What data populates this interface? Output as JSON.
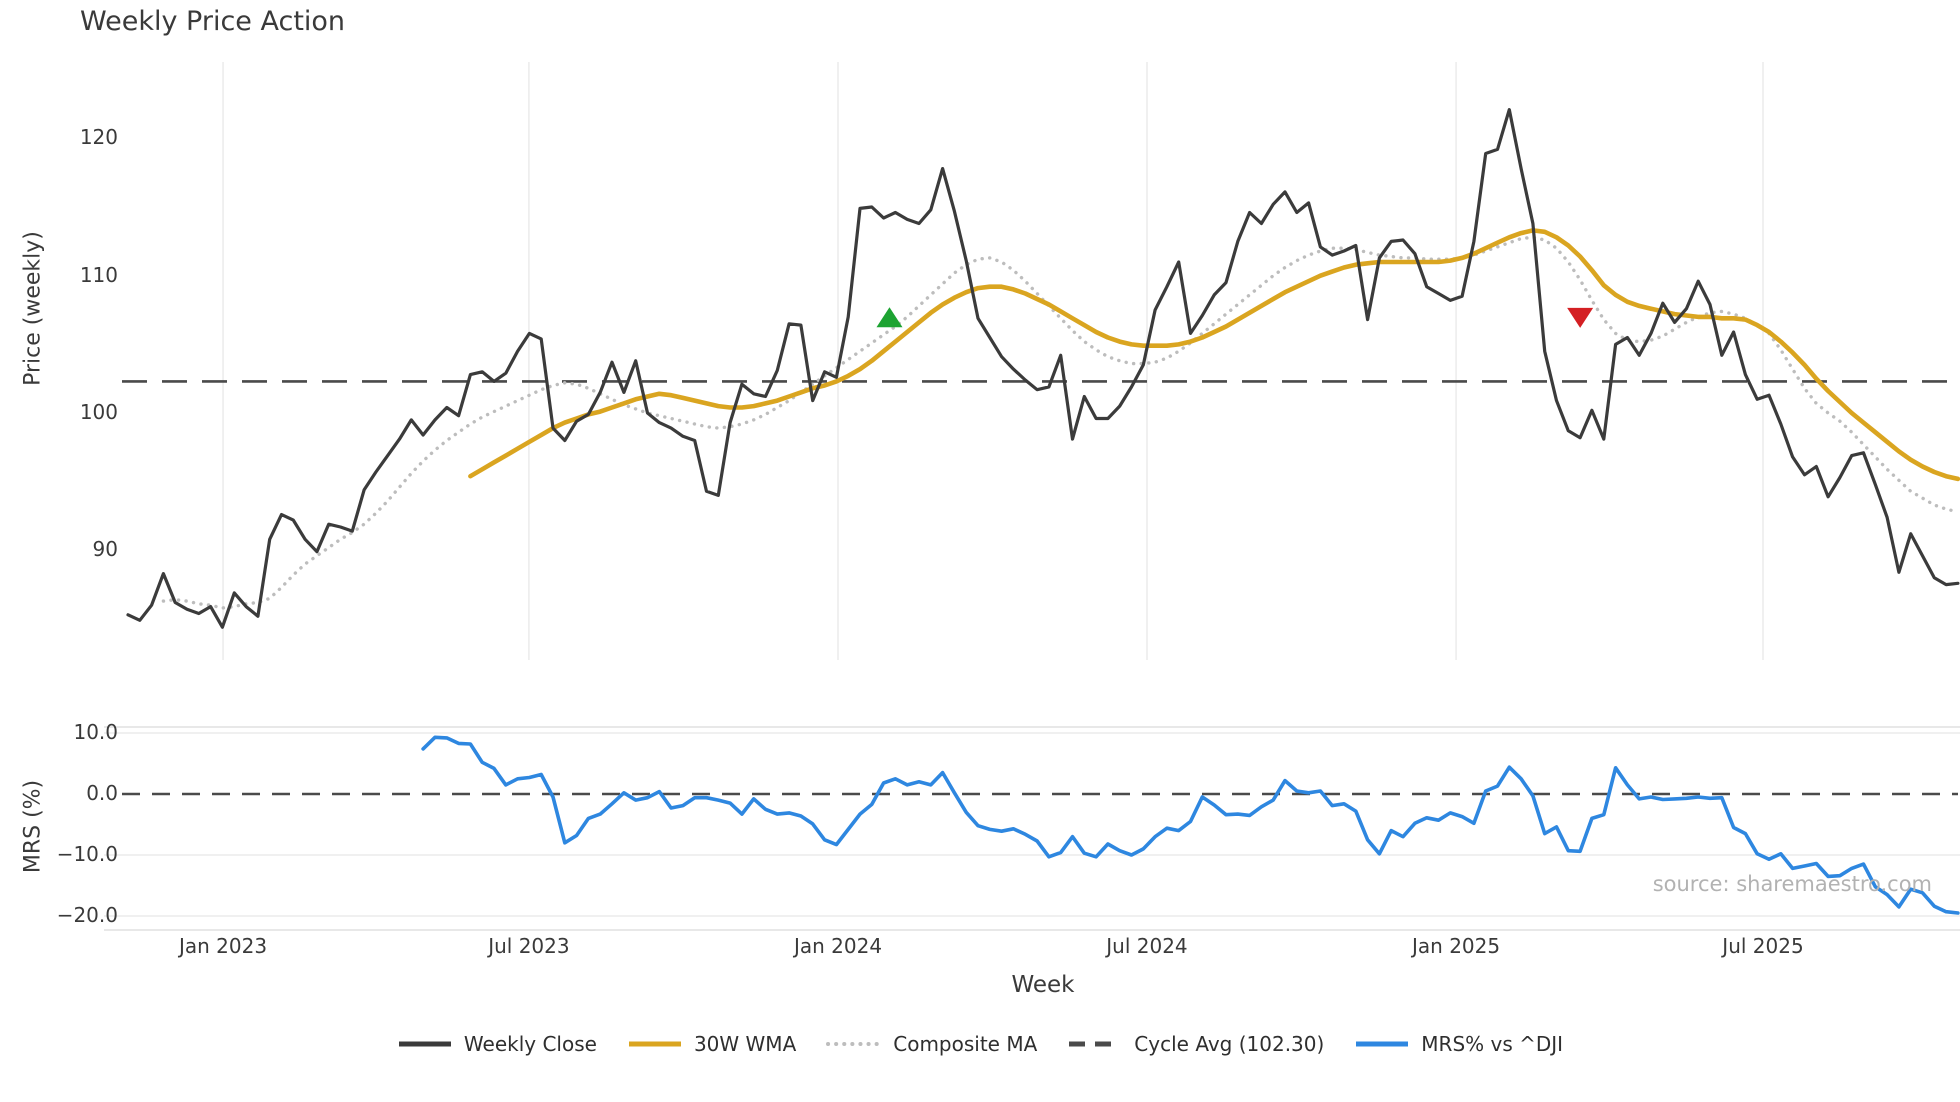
{
  "title": "Weekly Price Action",
  "source_note": "source: sharemaestro.com",
  "colors": {
    "weekly_close": "#3b3b3b",
    "wma_30w": "#daa520",
    "composite_ma": "#bdbdbd",
    "cycle_avg": "#4a4a4a",
    "mrs_line": "#2e87e0",
    "buy_marker": "#1da332",
    "sell_marker": "#d41f23",
    "grid": "#e8e8e8",
    "spine": "#d9d9d9",
    "tick_text": "#3a3a3a"
  },
  "legend": [
    {
      "label": "Weekly Close",
      "style": "solid",
      "color": "#3b3b3b"
    },
    {
      "label": "30W WMA",
      "style": "solid",
      "color": "#daa520"
    },
    {
      "label": "Composite MA",
      "style": "dotted",
      "color": "#bdbdbd"
    },
    {
      "label": "Cycle Avg (102.30)",
      "style": "dashed",
      "color": "#4a4a4a"
    },
    {
      "label": "MRS% vs ^DJI",
      "style": "solid",
      "color": "#2e87e0"
    }
  ],
  "chart_data": {
    "type": "line",
    "title": "Weekly Price Action",
    "xlabel": "Week",
    "x_tick_labels": [
      "Jan 2023",
      "Jul 2023",
      "Jan 2024",
      "Jul 2024",
      "Jan 2025",
      "Jul 2025"
    ],
    "x_tick_weeks": [
      8.05,
      33.96,
      60.14,
      86.31,
      112.49,
      138.49
    ],
    "total_weeks": 156,
    "panels": [
      {
        "name": "price",
        "ylabel": "Price (weekly)",
        "yticks": [
          120,
          110,
          100,
          90
        ],
        "ylim": [
          82.0,
          125.6
        ],
        "grid": "vertical",
        "cycle_avg": 102.3,
        "markers": [
          {
            "shape": "triangle-up",
            "week": 64.5,
            "value": 106.9,
            "color": "#1da332"
          },
          {
            "shape": "triangle-down",
            "week": 123.0,
            "value": 107.0,
            "color": "#d41f23"
          }
        ],
        "series": [
          {
            "name": "Weekly Close",
            "values": [
              85.3,
              84.9,
              86.0,
              88.3,
              86.2,
              85.7,
              85.4,
              85.9,
              84.4,
              86.9,
              85.9,
              85.2,
              90.8,
              92.6,
              92.2,
              90.8,
              89.9,
              91.9,
              91.7,
              91.4,
              94.4,
              95.7,
              96.9,
              98.1,
              99.5,
              98.4,
              99.5,
              100.4,
              99.8,
              102.8,
              103.0,
              102.3,
              102.9,
              104.5,
              105.8,
              105.4,
              98.9,
              98.0,
              99.4,
              99.9,
              101.5,
              103.7,
              101.5,
              103.8,
              100.0,
              99.3,
              98.9,
              98.3,
              98.0,
              94.3,
              94.0,
              99.3,
              102.1,
              101.4,
              101.2,
              103.1,
              106.5,
              106.4,
              100.9,
              103.0,
              102.6,
              107.0,
              114.9,
              115.0,
              114.2,
              114.6,
              114.1,
              113.8,
              114.8,
              117.8,
              114.7,
              111.1,
              106.9,
              105.5,
              104.1,
              103.2,
              102.4,
              101.7,
              101.9,
              104.2,
              98.1,
              101.2,
              99.6,
              99.6,
              100.5,
              101.9,
              103.5,
              107.5,
              109.2,
              111.0,
              105.8,
              107.1,
              108.6,
              109.5,
              112.5,
              114.6,
              113.8,
              115.2,
              116.1,
              114.6,
              115.3,
              112.1,
              111.5,
              111.8,
              112.2,
              106.8,
              111.3,
              112.5,
              112.6,
              111.6,
              109.2,
              108.7,
              108.2,
              108.5,
              112.5,
              118.9,
              119.2,
              122.1,
              117.8,
              113.8,
              104.5,
              100.9,
              98.7,
              98.2,
              100.2,
              98.1,
              105.0,
              105.5,
              104.2,
              105.8,
              108.0,
              106.6,
              107.6,
              109.6,
              107.9,
              104.2,
              105.9,
              102.8,
              101.0,
              101.3,
              99.2,
              96.8,
              95.5,
              96.1,
              93.9,
              95.3,
              96.9,
              97.1,
              94.8,
              92.4,
              88.4,
              91.2,
              89.6,
              88.0,
              87.5,
              87.6
            ]
          },
          {
            "name": "30W WMA",
            "values": [
              null,
              null,
              null,
              null,
              null,
              null,
              null,
              null,
              null,
              null,
              null,
              null,
              null,
              null,
              null,
              null,
              null,
              null,
              null,
              null,
              null,
              null,
              null,
              null,
              null,
              null,
              null,
              null,
              null,
              95.4,
              95.9,
              96.4,
              96.9,
              97.4,
              97.9,
              98.4,
              98.9,
              99.3,
              99.6,
              99.9,
              100.1,
              100.4,
              100.7,
              101.0,
              101.2,
              101.4,
              101.3,
              101.1,
              100.9,
              100.7,
              100.5,
              100.4,
              100.4,
              100.5,
              100.7,
              100.9,
              101.2,
              101.5,
              101.8,
              102.0,
              102.3,
              102.7,
              103.2,
              103.8,
              104.5,
              105.2,
              105.9,
              106.6,
              107.3,
              107.9,
              108.4,
              108.8,
              109.1,
              109.2,
              109.2,
              109.0,
              108.7,
              108.3,
              107.9,
              107.4,
              106.9,
              106.4,
              105.9,
              105.5,
              105.2,
              105.0,
              104.9,
              104.9,
              104.9,
              105.0,
              105.2,
              105.5,
              105.9,
              106.3,
              106.8,
              107.3,
              107.8,
              108.3,
              108.8,
              109.2,
              109.6,
              110.0,
              110.3,
              110.6,
              110.8,
              110.9,
              111.0,
              111.0,
              111.0,
              111.0,
              111.0,
              111.0,
              111.1,
              111.3,
              111.6,
              112.0,
              112.4,
              112.8,
              113.1,
              113.3,
              113.2,
              112.8,
              112.2,
              111.4,
              110.4,
              109.3,
              108.6,
              108.1,
              107.8,
              107.6,
              107.4,
              107.2,
              107.1,
              107.0,
              107.0,
              106.9,
              106.9,
              106.8,
              106.4,
              105.9,
              105.2,
              104.4,
              103.5,
              102.5,
              101.6,
              100.8,
              100.0,
              99.3,
              98.6,
              97.9,
              97.2,
              96.6,
              96.1,
              95.7,
              95.4,
              95.2
            ]
          },
          {
            "name": "Composite MA",
            "values": [
              null,
              null,
              null,
              86.3,
              86.4,
              86.3,
              86.1,
              86.0,
              85.8,
              85.9,
              86.1,
              86.2,
              86.5,
              87.3,
              88.2,
              89.0,
              89.6,
              90.2,
              90.8,
              91.3,
              91.9,
              92.7,
              93.6,
              94.6,
              95.6,
              96.5,
              97.3,
              98.0,
              98.6,
              99.2,
              99.7,
              100.1,
              100.5,
              100.9,
              101.3,
              101.7,
              102.0,
              102.2,
              102.1,
              101.8,
              101.4,
              101.0,
              100.6,
              100.3,
              100.0,
              99.8,
              99.6,
              99.4,
              99.2,
              99.0,
              98.9,
              99.0,
              99.2,
              99.5,
              99.9,
              100.4,
              100.9,
              101.5,
              102.1,
              102.7,
              103.3,
              103.9,
              104.5,
              105.1,
              105.7,
              106.3,
              107.0,
              107.8,
              108.6,
              109.4,
              110.2,
              110.8,
              111.2,
              111.3,
              111.0,
              110.4,
              109.6,
              108.7,
              107.8,
              106.9,
              106.0,
              105.2,
              104.6,
              104.1,
              103.8,
              103.6,
              103.6,
              103.7,
              104.0,
              104.5,
              105.1,
              105.8,
              106.5,
              107.2,
              107.9,
              108.6,
              109.3,
              110.0,
              110.6,
              111.1,
              111.5,
              111.8,
              112.0,
              112.0,
              111.9,
              111.7,
              111.5,
              111.4,
              111.3,
              111.3,
              111.2,
              111.2,
              111.2,
              111.3,
              111.5,
              111.8,
              112.1,
              112.4,
              112.7,
              112.8,
              112.6,
              112.0,
              111.0,
              109.7,
              108.2,
              106.8,
              105.8,
              105.3,
              105.2,
              105.3,
              105.6,
              106.1,
              106.6,
              107.0,
              107.3,
              107.4,
              107.2,
              106.9,
              106.4,
              105.8,
              104.6,
              103.2,
              101.8,
              100.7,
              100.0,
              99.4,
              98.6,
              97.7,
              96.8,
              95.9,
              95.1,
              94.3,
              93.8,
              93.3,
              93.0,
              92.8
            ]
          }
        ]
      },
      {
        "name": "mrs",
        "ylabel": "MRS (%)",
        "yticks": [
          10.0,
          0.0,
          -10.0,
          -20.0
        ],
        "ylim": [
          -22.0,
          11.0
        ],
        "zero_line": 0.0,
        "series": [
          {
            "name": "MRS% vs ^DJI",
            "values": [
              null,
              null,
              null,
              null,
              null,
              null,
              null,
              null,
              null,
              null,
              null,
              null,
              null,
              null,
              null,
              null,
              null,
              null,
              null,
              null,
              null,
              null,
              null,
              null,
              null,
              7.4,
              9.3,
              9.2,
              8.3,
              8.2,
              5.2,
              4.2,
              1.5,
              2.5,
              2.7,
              3.2,
              -0.5,
              -8.0,
              -6.8,
              -4.0,
              -3.3,
              -1.6,
              0.2,
              -1.0,
              -0.6,
              0.4,
              -2.3,
              -1.9,
              -0.6,
              -0.6,
              -1.0,
              -1.5,
              -3.3,
              -0.8,
              -2.5,
              -3.3,
              -3.1,
              -3.6,
              -4.9,
              -7.5,
              -8.3,
              -5.8,
              -3.3,
              -1.7,
              1.8,
              2.5,
              1.5,
              2.0,
              1.5,
              3.5,
              0.2,
              -3.0,
              -5.2,
              -5.8,
              -6.1,
              -5.7,
              -6.6,
              -7.7,
              -10.3,
              -9.6,
              -7.0,
              -9.7,
              -10.3,
              -8.2,
              -9.3,
              -10.0,
              -9.0,
              -7.0,
              -5.6,
              -6.0,
              -4.5,
              -0.5,
              -1.8,
              -3.4,
              -3.3,
              -3.5,
              -2.1,
              -1.0,
              2.2,
              0.5,
              0.2,
              0.5,
              -1.9,
              -1.6,
              -2.8,
              -7.5,
              -9.8,
              -6.0,
              -7.0,
              -4.8,
              -3.9,
              -4.3,
              -3.1,
              -3.7,
              -4.8,
              0.5,
              1.3,
              4.4,
              2.5,
              -0.3,
              -6.5,
              -5.4,
              -9.3,
              -9.4,
              -4.0,
              -3.4,
              4.3,
              1.5,
              -0.8,
              -0.5,
              -0.9,
              -0.8,
              -0.7,
              -0.5,
              -0.7,
              -0.6,
              -5.5,
              -6.5,
              -9.8,
              -10.7,
              -9.8,
              -12.2,
              -11.8,
              -11.4,
              -13.5,
              -13.4,
              -12.2,
              -11.5,
              -15.2,
              -16.5,
              -18.5,
              -15.6,
              -16.2,
              -18.4,
              -19.3,
              -19.5
            ]
          }
        ]
      }
    ]
  }
}
